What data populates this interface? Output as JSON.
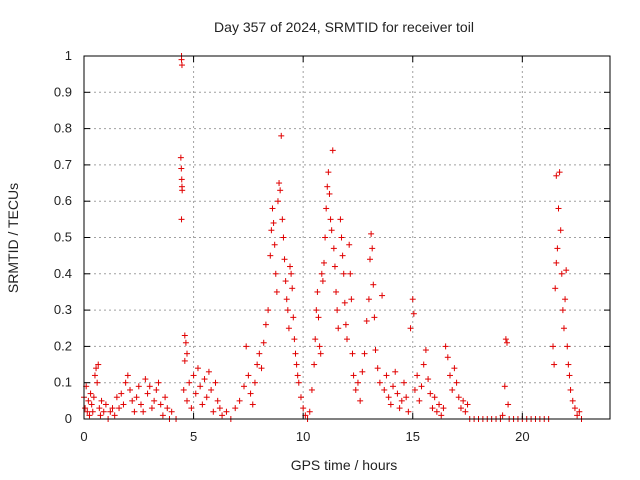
{
  "chart_data": {
    "type": "scatter",
    "title": "Day 357 of 2024, SRMTID for receiver toil",
    "xlabel": "GPS time / hours",
    "ylabel": "SRMTID / TECUs",
    "xlim": [
      0,
      24
    ],
    "ylim": [
      0,
      1
    ],
    "xticks": [
      0,
      5,
      10,
      15,
      20
    ],
    "xtick_labels": [
      "0",
      "5",
      "10",
      "15",
      "20"
    ],
    "yticks": [
      0,
      0.1,
      0.2,
      0.3,
      0.4,
      0.5,
      0.6,
      0.7,
      0.8,
      0.9,
      1
    ],
    "ytick_labels": [
      "0",
      "0.1",
      "0.2",
      "0.3",
      "0.4",
      "0.5",
      "0.6",
      "0.7",
      "0.8",
      "0.9",
      "1"
    ],
    "grid": true,
    "marker": "+",
    "color": "#e00000",
    "series": [
      {
        "points": [
          [
            0.0,
            0.06
          ],
          [
            0.05,
            0.03
          ],
          [
            0.1,
            0.09
          ],
          [
            0.15,
            0.02
          ],
          [
            0.2,
            0.05
          ],
          [
            0.25,
            0.01
          ],
          [
            0.3,
            0.07
          ],
          [
            0.35,
            0.04
          ],
          [
            0.4,
            0.02
          ],
          [
            0.45,
            0.06
          ],
          [
            0.5,
            0.12
          ],
          [
            0.55,
            0.14
          ],
          [
            0.6,
            0.1
          ],
          [
            0.65,
            0.15
          ],
          [
            0.7,
            0.03
          ],
          [
            0.75,
            0.01
          ],
          [
            0.8,
            0.05
          ],
          [
            0.9,
            0.02
          ],
          [
            1.0,
            0.04
          ],
          [
            1.1,
            0.0
          ],
          [
            1.2,
            0.02
          ],
          [
            1.3,
            0.03
          ],
          [
            1.4,
            0.01
          ],
          [
            1.5,
            0.06
          ],
          [
            1.6,
            0.03
          ],
          [
            1.7,
            0.07
          ],
          [
            1.8,
            0.04
          ],
          [
            1.9,
            0.1
          ],
          [
            2.0,
            0.12
          ],
          [
            2.1,
            0.08
          ],
          [
            2.2,
            0.05
          ],
          [
            2.3,
            0.02
          ],
          [
            2.4,
            0.06
          ],
          [
            2.5,
            0.09
          ],
          [
            2.6,
            0.04
          ],
          [
            2.7,
            0.02
          ],
          [
            2.8,
            0.11
          ],
          [
            2.9,
            0.07
          ],
          [
            3.0,
            0.09
          ],
          [
            3.1,
            0.03
          ],
          [
            3.2,
            0.05
          ],
          [
            3.3,
            0.08
          ],
          [
            3.4,
            0.1
          ],
          [
            3.5,
            0.04
          ],
          [
            3.6,
            0.01
          ],
          [
            3.7,
            0.06
          ],
          [
            3.8,
            0.03
          ],
          [
            3.9,
            0.0
          ],
          [
            4.0,
            0.02
          ],
          [
            4.2,
            0.0
          ],
          [
            4.45,
            1.0
          ],
          [
            4.45,
            0.99
          ],
          [
            4.47,
            0.975
          ],
          [
            4.42,
            0.72
          ],
          [
            4.44,
            0.69
          ],
          [
            4.46,
            0.66
          ],
          [
            4.47,
            0.64
          ],
          [
            4.48,
            0.63
          ],
          [
            4.45,
            0.55
          ],
          [
            4.6,
            0.23
          ],
          [
            4.65,
            0.21
          ],
          [
            4.7,
            0.18
          ],
          [
            4.6,
            0.16
          ],
          [
            4.55,
            0.08
          ],
          [
            4.7,
            0.05
          ],
          [
            4.8,
            0.1
          ],
          [
            4.9,
            0.03
          ],
          [
            5.0,
            0.12
          ],
          [
            5.1,
            0.07
          ],
          [
            5.2,
            0.14
          ],
          [
            5.3,
            0.09
          ],
          [
            5.4,
            0.04
          ],
          [
            5.5,
            0.11
          ],
          [
            5.6,
            0.06
          ],
          [
            5.7,
            0.13
          ],
          [
            5.8,
            0.08
          ],
          [
            5.9,
            0.02
          ],
          [
            6.0,
            0.1
          ],
          [
            6.1,
            0.05
          ],
          [
            6.2,
            0.03
          ],
          [
            6.3,
            0.01
          ],
          [
            6.5,
            0.02
          ],
          [
            6.7,
            0.0
          ],
          [
            6.9,
            0.03
          ],
          [
            7.1,
            0.05
          ],
          [
            7.3,
            0.09
          ],
          [
            7.4,
            0.2
          ],
          [
            7.5,
            0.12
          ],
          [
            7.6,
            0.07
          ],
          [
            7.7,
            0.04
          ],
          [
            7.8,
            0.1
          ],
          [
            7.9,
            0.15
          ],
          [
            8.0,
            0.18
          ],
          [
            8.1,
            0.14
          ],
          [
            8.2,
            0.21
          ],
          [
            8.3,
            0.26
          ],
          [
            8.4,
            0.3
          ],
          [
            8.5,
            0.45
          ],
          [
            8.55,
            0.52
          ],
          [
            8.6,
            0.58
          ],
          [
            8.65,
            0.54
          ],
          [
            8.7,
            0.48
          ],
          [
            8.75,
            0.4
          ],
          [
            8.8,
            0.35
          ],
          [
            8.85,
            0.6
          ],
          [
            8.9,
            0.65
          ],
          [
            8.95,
            0.63
          ],
          [
            9.0,
            0.78
          ],
          [
            9.05,
            0.55
          ],
          [
            9.1,
            0.5
          ],
          [
            9.15,
            0.44
          ],
          [
            9.2,
            0.38
          ],
          [
            9.25,
            0.33
          ],
          [
            9.3,
            0.3
          ],
          [
            9.35,
            0.25
          ],
          [
            9.4,
            0.42
          ],
          [
            9.45,
            0.4
          ],
          [
            9.5,
            0.36
          ],
          [
            9.55,
            0.28
          ],
          [
            9.6,
            0.22
          ],
          [
            9.65,
            0.18
          ],
          [
            9.7,
            0.15
          ],
          [
            9.75,
            0.12
          ],
          [
            9.8,
            0.1
          ],
          [
            9.9,
            0.06
          ],
          [
            10.0,
            0.03
          ],
          [
            10.1,
            0.01
          ],
          [
            10.2,
            0.0
          ],
          [
            10.3,
            0.02
          ],
          [
            10.4,
            0.08
          ],
          [
            10.5,
            0.15
          ],
          [
            10.55,
            0.22
          ],
          [
            10.6,
            0.3
          ],
          [
            10.65,
            0.35
          ],
          [
            10.7,
            0.28
          ],
          [
            10.75,
            0.2
          ],
          [
            10.8,
            0.18
          ],
          [
            10.85,
            0.4
          ],
          [
            10.9,
            0.38
          ],
          [
            10.95,
            0.43
          ],
          [
            11.0,
            0.5
          ],
          [
            11.05,
            0.58
          ],
          [
            11.1,
            0.64
          ],
          [
            11.15,
            0.68
          ],
          [
            11.2,
            0.62
          ],
          [
            11.25,
            0.55
          ],
          [
            11.3,
            0.52
          ],
          [
            11.35,
            0.74
          ],
          [
            11.4,
            0.47
          ],
          [
            11.45,
            0.42
          ],
          [
            11.5,
            0.35
          ],
          [
            11.55,
            0.3
          ],
          [
            11.6,
            0.25
          ],
          [
            11.7,
            0.55
          ],
          [
            11.75,
            0.5
          ],
          [
            11.8,
            0.45
          ],
          [
            11.85,
            0.4
          ],
          [
            11.9,
            0.32
          ],
          [
            11.95,
            0.26
          ],
          [
            12.0,
            0.22
          ],
          [
            12.1,
            0.48
          ],
          [
            12.15,
            0.4
          ],
          [
            12.2,
            0.33
          ],
          [
            12.25,
            0.18
          ],
          [
            12.3,
            0.12
          ],
          [
            12.4,
            0.08
          ],
          [
            12.5,
            0.1
          ],
          [
            12.6,
            0.05
          ],
          [
            12.7,
            0.13
          ],
          [
            12.8,
            0.18
          ],
          [
            12.9,
            0.27
          ],
          [
            13.0,
            0.33
          ],
          [
            13.05,
            0.44
          ],
          [
            13.1,
            0.51
          ],
          [
            13.15,
            0.47
          ],
          [
            13.2,
            0.37
          ],
          [
            13.25,
            0.28
          ],
          [
            13.3,
            0.19
          ],
          [
            13.4,
            0.14
          ],
          [
            13.5,
            0.1
          ],
          [
            13.6,
            0.34
          ],
          [
            13.7,
            0.08
          ],
          [
            13.8,
            0.12
          ],
          [
            13.9,
            0.06
          ],
          [
            14.0,
            0.04
          ],
          [
            14.1,
            0.09
          ],
          [
            14.2,
            0.13
          ],
          [
            14.3,
            0.07
          ],
          [
            14.4,
            0.03
          ],
          [
            14.5,
            0.05
          ],
          [
            14.6,
            0.1
          ],
          [
            14.7,
            0.06
          ],
          [
            14.8,
            0.02
          ],
          [
            14.9,
            0.25
          ],
          [
            15.0,
            0.33
          ],
          [
            15.05,
            0.29
          ],
          [
            15.1,
            0.08
          ],
          [
            15.2,
            0.12
          ],
          [
            15.3,
            0.05
          ],
          [
            15.4,
            0.09
          ],
          [
            15.5,
            0.15
          ],
          [
            15.6,
            0.19
          ],
          [
            15.7,
            0.11
          ],
          [
            15.8,
            0.07
          ],
          [
            15.9,
            0.03
          ],
          [
            16.0,
            0.06
          ],
          [
            16.1,
            0.02
          ],
          [
            16.2,
            0.04
          ],
          [
            16.3,
            0.01
          ],
          [
            16.4,
            0.03
          ],
          [
            16.5,
            0.2
          ],
          [
            16.6,
            0.17
          ],
          [
            16.7,
            0.12
          ],
          [
            16.8,
            0.08
          ],
          [
            16.9,
            0.14
          ],
          [
            17.0,
            0.1
          ],
          [
            17.1,
            0.06
          ],
          [
            17.2,
            0.03
          ],
          [
            17.3,
            0.05
          ],
          [
            17.4,
            0.02
          ],
          [
            17.5,
            0.04
          ],
          [
            17.6,
            0.0
          ],
          [
            17.8,
            0.0
          ],
          [
            18.0,
            0.0
          ],
          [
            18.2,
            0.0
          ],
          [
            18.4,
            0.0
          ],
          [
            18.6,
            0.0
          ],
          [
            18.8,
            0.0
          ],
          [
            19.0,
            0.0
          ],
          [
            19.1,
            0.01
          ],
          [
            19.2,
            0.09
          ],
          [
            19.25,
            0.22
          ],
          [
            19.3,
            0.21
          ],
          [
            19.35,
            0.04
          ],
          [
            19.4,
            0.0
          ],
          [
            19.6,
            0.0
          ],
          [
            19.8,
            0.0
          ],
          [
            20.0,
            0.0
          ],
          [
            20.2,
            0.0
          ],
          [
            20.4,
            0.0
          ],
          [
            20.6,
            0.0
          ],
          [
            20.8,
            0.0
          ],
          [
            21.0,
            0.0
          ],
          [
            21.2,
            0.0
          ],
          [
            21.4,
            0.2
          ],
          [
            21.45,
            0.15
          ],
          [
            21.5,
            0.36
          ],
          [
            21.55,
            0.43
          ],
          [
            21.6,
            0.47
          ],
          [
            21.65,
            0.58
          ],
          [
            21.55,
            0.67
          ],
          [
            21.7,
            0.68
          ],
          [
            21.75,
            0.52
          ],
          [
            21.8,
            0.4
          ],
          [
            21.85,
            0.3
          ],
          [
            21.9,
            0.25
          ],
          [
            21.95,
            0.33
          ],
          [
            22.0,
            0.41
          ],
          [
            22.05,
            0.2
          ],
          [
            22.1,
            0.15
          ],
          [
            22.15,
            0.12
          ],
          [
            22.2,
            0.08
          ],
          [
            22.3,
            0.05
          ],
          [
            22.4,
            0.03
          ],
          [
            22.5,
            0.01
          ],
          [
            22.6,
            0.02
          ],
          [
            22.7,
            0.0
          ]
        ]
      }
    ]
  }
}
